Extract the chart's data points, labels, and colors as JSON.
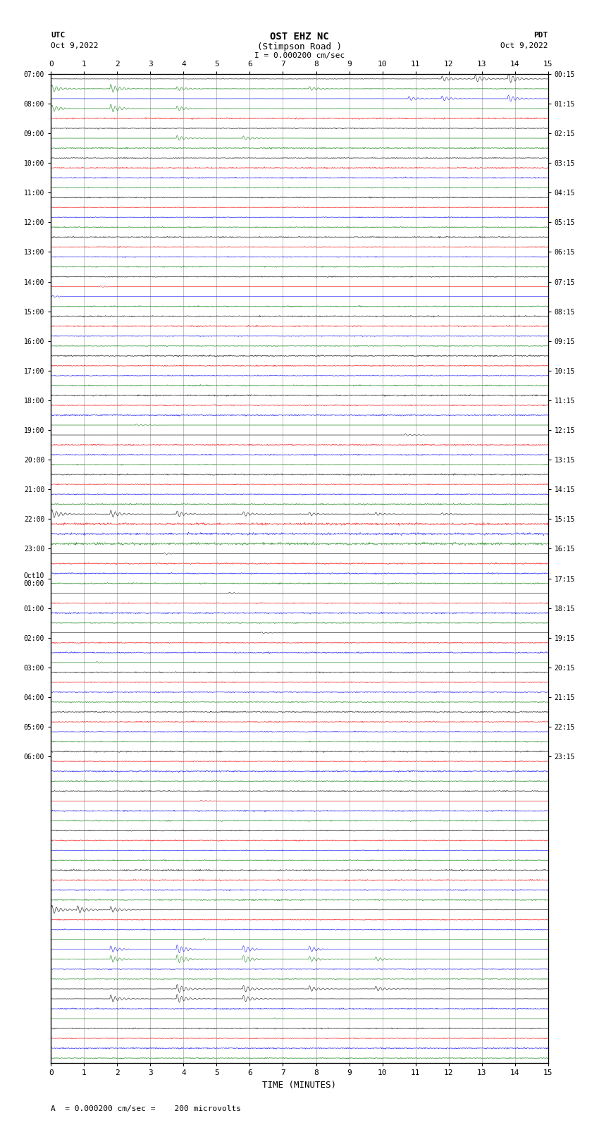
{
  "title_line1": "OST EHZ NC",
  "title_line2": "(Stimpson Road )",
  "title_line3": "I = 0.000200 cm/sec",
  "label_utc": "UTC",
  "label_date_left": "Oct 9,2022",
  "label_pdt": "PDT",
  "label_date_right": "Oct 9,2022",
  "xlabel": "TIME (MINUTES)",
  "footer": "  = 0.000200 cm/sec =    200 microvolts",
  "footer_symbol": "A",
  "utc_labels": [
    "07:00",
    "",
    "",
    "08:00",
    "",
    "",
    "09:00",
    "",
    "",
    "10:00",
    "",
    "",
    "11:00",
    "",
    "",
    "12:00",
    "",
    "",
    "13:00",
    "",
    "",
    "14:00",
    "",
    "",
    "15:00",
    "",
    "",
    "16:00",
    "",
    "",
    "17:00",
    "",
    "",
    "18:00",
    "",
    "",
    "19:00",
    "",
    "",
    "20:00",
    "",
    "",
    "21:00",
    "",
    "",
    "22:00",
    "",
    "",
    "23:00",
    "",
    "",
    "Oct10\n00:00",
    "",
    "",
    "01:00",
    "",
    "",
    "02:00",
    "",
    "",
    "03:00",
    "",
    "",
    "04:00",
    "",
    "",
    "05:00",
    "",
    "",
    "06:00",
    "",
    ""
  ],
  "pdt_labels": [
    "00:15",
    "",
    "",
    "01:15",
    "",
    "",
    "02:15",
    "",
    "",
    "03:15",
    "",
    "",
    "04:15",
    "",
    "",
    "05:15",
    "",
    "",
    "06:15",
    "",
    "",
    "07:15",
    "",
    "",
    "08:15",
    "",
    "",
    "09:15",
    "",
    "",
    "10:15",
    "",
    "",
    "11:15",
    "",
    "",
    "12:15",
    "",
    "",
    "13:15",
    "",
    "",
    "14:15",
    "",
    "",
    "15:15",
    "",
    "",
    "16:15",
    "",
    "",
    "17:15",
    "",
    "",
    "18:15",
    "",
    "",
    "19:15",
    "",
    "",
    "20:15",
    "",
    "",
    "21:15",
    "",
    "",
    "22:15",
    "",
    "",
    "23:15",
    "",
    ""
  ],
  "num_rows": 100,
  "minutes_per_row": 15,
  "background_color": "#ffffff",
  "grid_color": "#aaaaaa",
  "colors_cycle": [
    "black",
    "red",
    "blue",
    "green"
  ],
  "xmin": 0,
  "xmax": 15,
  "xticks": [
    0,
    1,
    2,
    3,
    4,
    5,
    6,
    7,
    8,
    9,
    10,
    11,
    12,
    13,
    14,
    15
  ]
}
